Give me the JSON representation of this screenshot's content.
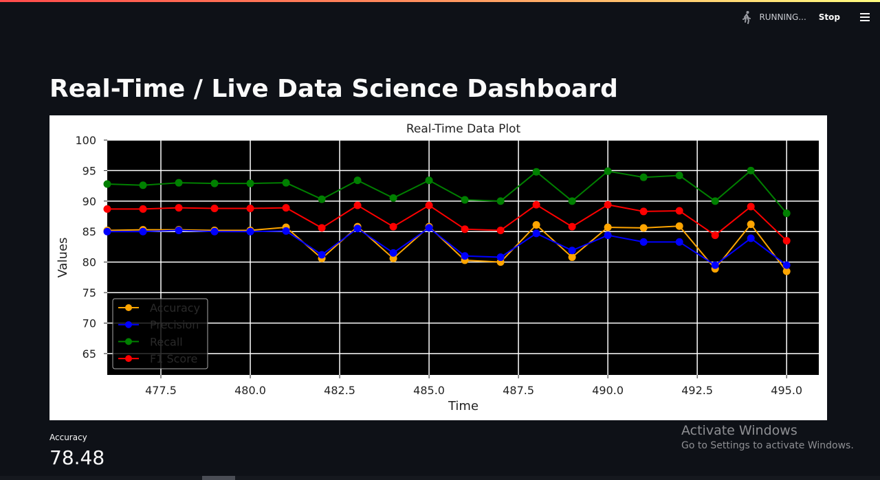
{
  "status": {
    "running_label": "RUNNING...",
    "stop_label": "Stop"
  },
  "page": {
    "title": "Real-Time / Live Data Science Dashboard"
  },
  "colors": {
    "accuracy": "#ffa500",
    "precision": "#0000ff",
    "recall": "#008000",
    "f1": "#ff0000"
  },
  "chart_data": {
    "type": "line",
    "title": "Real-Time Data Plot",
    "xlabel": "Time",
    "ylabel": "Values",
    "x": [
      476,
      477,
      478,
      479,
      480,
      481,
      482,
      483,
      484,
      485,
      486,
      487,
      488,
      489,
      490,
      491,
      492,
      493,
      494,
      495
    ],
    "xlim": [
      476,
      495.9
    ],
    "ylim": [
      61.5,
      100
    ],
    "xticks": [
      477.5,
      480.0,
      482.5,
      485.0,
      487.5,
      490.0,
      492.5,
      495.0
    ],
    "xtick_labels": [
      "477.5",
      "480.0",
      "482.5",
      "485.0",
      "487.5",
      "490.0",
      "492.5",
      "495.0"
    ],
    "yticks": [
      65,
      70,
      75,
      80,
      85,
      90,
      95,
      100
    ],
    "ytick_labels": [
      "65",
      "70",
      "75",
      "80",
      "85",
      "90",
      "95",
      "100"
    ],
    "background": "black",
    "grid": true,
    "legend_position": "lower-left",
    "series": [
      {
        "name": "Accuracy",
        "color": "#ffa500",
        "values": [
          85.2,
          85.3,
          85.3,
          85.2,
          85.2,
          85.7,
          80.6,
          85.8,
          80.6,
          85.8,
          80.3,
          80.0,
          86.1,
          80.8,
          85.7,
          85.6,
          85.9,
          78.9,
          86.2,
          78.48
        ]
      },
      {
        "name": "Precision",
        "color": "#0000ff",
        "values": [
          85.0,
          85.0,
          85.2,
          85.0,
          85.0,
          85.1,
          81.2,
          85.5,
          81.5,
          85.6,
          81.0,
          80.8,
          84.7,
          81.9,
          84.4,
          83.3,
          83.3,
          79.5,
          83.9,
          79.5
        ]
      },
      {
        "name": "Recall",
        "color": "#008000",
        "values": [
          92.8,
          92.6,
          93.0,
          92.9,
          92.9,
          93.0,
          90.3,
          93.4,
          90.5,
          93.4,
          90.2,
          90.0,
          94.8,
          90.0,
          94.9,
          93.9,
          94.2,
          90.0,
          95.0,
          88.0
        ]
      },
      {
        "name": "F1 Score",
        "color": "#ff0000",
        "values": [
          88.7,
          88.7,
          88.9,
          88.8,
          88.8,
          88.9,
          85.6,
          89.3,
          85.8,
          89.3,
          85.4,
          85.2,
          89.4,
          85.8,
          89.4,
          88.3,
          88.4,
          84.4,
          89.1,
          83.5
        ]
      }
    ]
  },
  "metric": {
    "label": "Accuracy",
    "value": "78.48"
  },
  "watermark": {
    "title": "Activate Windows",
    "subtitle": "Go to Settings to activate Windows."
  }
}
